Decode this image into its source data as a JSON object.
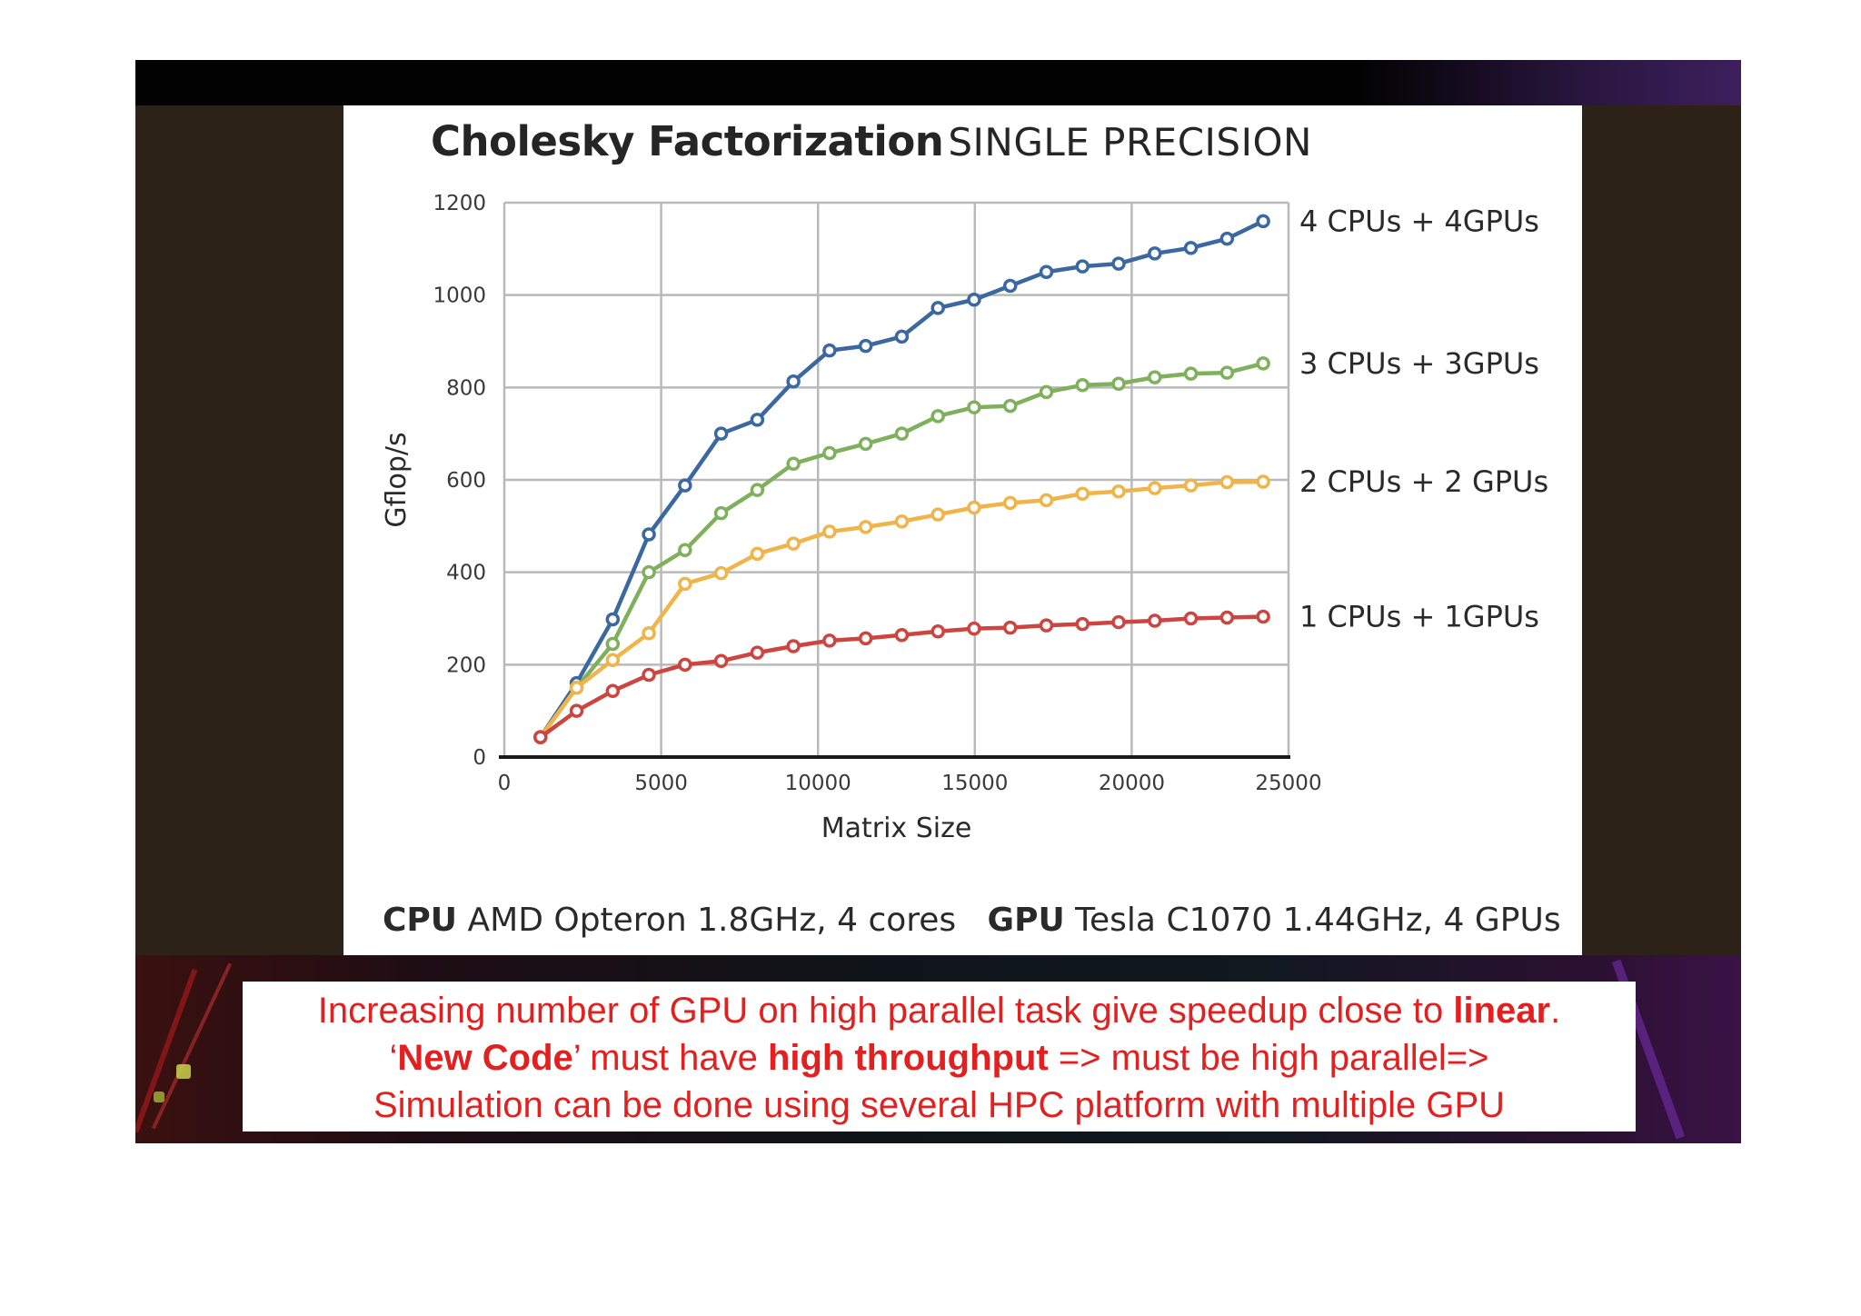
{
  "title_bold": "Cholesky Factorization",
  "title_light": "SINGLE PRECISION",
  "specs": {
    "cpu_label": "CPU",
    "cpu_text": "AMD Opteron 1.8GHz, 4 cores",
    "gpu_label": "GPU",
    "gpu_text": "Tesla C1070 1.44GHz, 4 GPUs"
  },
  "caption": {
    "line1_a": "Increasing number of GPU on high parallel task give speedup close to ",
    "line1_b": "linear",
    "line1_c": ".",
    "line2_a": "‘",
    "line2_b": "New Code",
    "line2_c": "’ must have ",
    "line2_d": "high throughput",
    "line2_e": " => must be high parallel=>",
    "line3": "Simulation can be done using several HPC platform with multiple GPU"
  },
  "chart_data": {
    "type": "line",
    "title": "Cholesky Factorization SINGLE PRECISION",
    "xlabel": "Matrix Size",
    "ylabel": "Gflop/s",
    "xlim": [
      0,
      25000
    ],
    "ylim": [
      0,
      1200
    ],
    "xticks": [
      0,
      5000,
      10000,
      15000,
      20000,
      25000
    ],
    "yticks": [
      0,
      200,
      400,
      600,
      800,
      1000,
      1200
    ],
    "grid": true,
    "legend": "right, labels at line ends",
    "x": [
      1152,
      2304,
      3456,
      4608,
      5760,
      6912,
      8064,
      9216,
      10368,
      11520,
      12672,
      13824,
      14976,
      16128,
      17280,
      18432,
      19584,
      20736,
      21888,
      23040,
      24192
    ],
    "series": [
      {
        "name": "4 CPUs + 4GPUs",
        "color": "#3b68a0",
        "values": [
          43,
          160,
          298,
          482,
          588,
          700,
          730,
          813,
          880,
          890,
          910,
          972,
          990,
          1020,
          1050,
          1062,
          1068,
          1090,
          1102,
          1122,
          1160
        ]
      },
      {
        "name": "3 CPUs + 3GPUs",
        "color": "#7fb05c",
        "values": [
          43,
          150,
          245,
          400,
          448,
          528,
          578,
          635,
          658,
          678,
          700,
          738,
          757,
          760,
          790,
          805,
          808,
          822,
          830,
          832,
          852
        ]
      },
      {
        "name": "2 CPUs + 2 GPUs",
        "color": "#f0b54a",
        "values": [
          43,
          150,
          210,
          268,
          375,
          398,
          440,
          462,
          488,
          498,
          510,
          525,
          540,
          550,
          556,
          570,
          575,
          582,
          588,
          595,
          596
        ]
      },
      {
        "name": "1 CPUs + 1GPUs",
        "color": "#cc4540",
        "values": [
          43,
          100,
          143,
          178,
          200,
          208,
          226,
          240,
          252,
          257,
          264,
          272,
          278,
          280,
          285,
          288,
          292,
          295,
          300,
          302,
          304
        ]
      }
    ]
  }
}
